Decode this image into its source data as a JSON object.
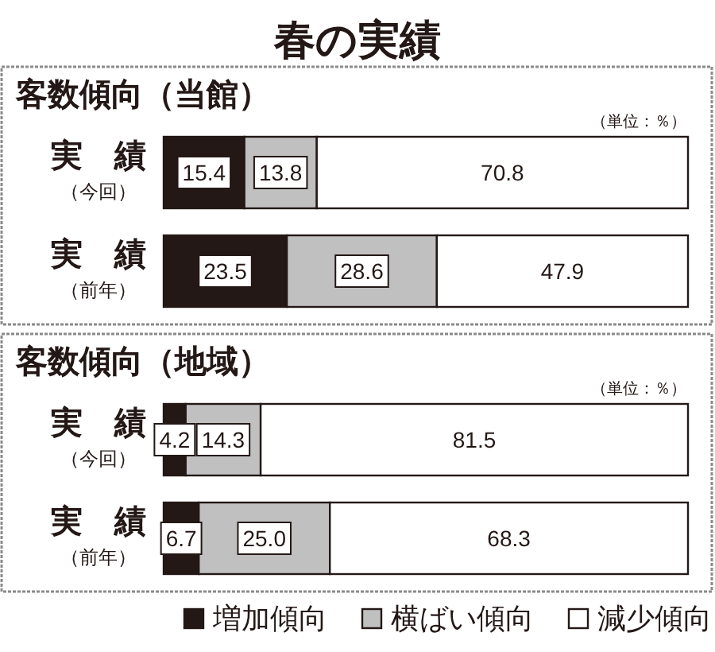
{
  "chart_data": [
    {
      "type": "bar",
      "orientation": "horizontal",
      "stacked": true,
      "title": "春の実績",
      "subtitle": "客数傾向（当館）",
      "annotations": [
        "（単位：％）"
      ],
      "categories": [
        "実　績（今回）",
        "実　績（前年）"
      ],
      "series": [
        {
          "color": "#231815",
          "values": [
            15.4,
            23.5
          ],
          "value_labels": [
            "15.4",
            "23.5"
          ]
        },
        {
          "color": "#c0c0c0",
          "values": [
            13.8,
            28.6
          ],
          "value_labels": [
            "13.8",
            "28.6"
          ]
        },
        {
          "color": "#ffffff",
          "values": [
            70.8,
            47.9
          ],
          "value_labels": [
            "70.8",
            "47.9"
          ]
        }
      ],
      "xlim": [
        0,
        100
      ],
      "tick_labels": "y"
    },
    {
      "type": "bar",
      "orientation": "horizontal",
      "stacked": true,
      "subtitle": "客数傾向（地域）",
      "annotations": [
        "（単位：％）"
      ],
      "categories": [
        "実　績（今回）",
        "実　績（前年）"
      ],
      "series": [
        {
          "name": "増加傾向",
          "color": "#231815",
          "values": [
            4.2,
            6.7
          ],
          "value_labels": [
            "4.2",
            "6.7"
          ]
        },
        {
          "name": "横ばい傾向",
          "color": "#c0c0c0",
          "values": [
            14.3,
            25.0
          ],
          "value_labels": [
            "14.3",
            "25.0"
          ]
        },
        {
          "name": "減少傾向",
          "color": "#ffffff",
          "values": [
            81.5,
            68.3
          ],
          "value_labels": [
            "81.5",
            "68.3"
          ]
        }
      ],
      "xlim": [
        0,
        100
      ],
      "tick_labels": "y",
      "legend": "bottom"
    }
  ]
}
